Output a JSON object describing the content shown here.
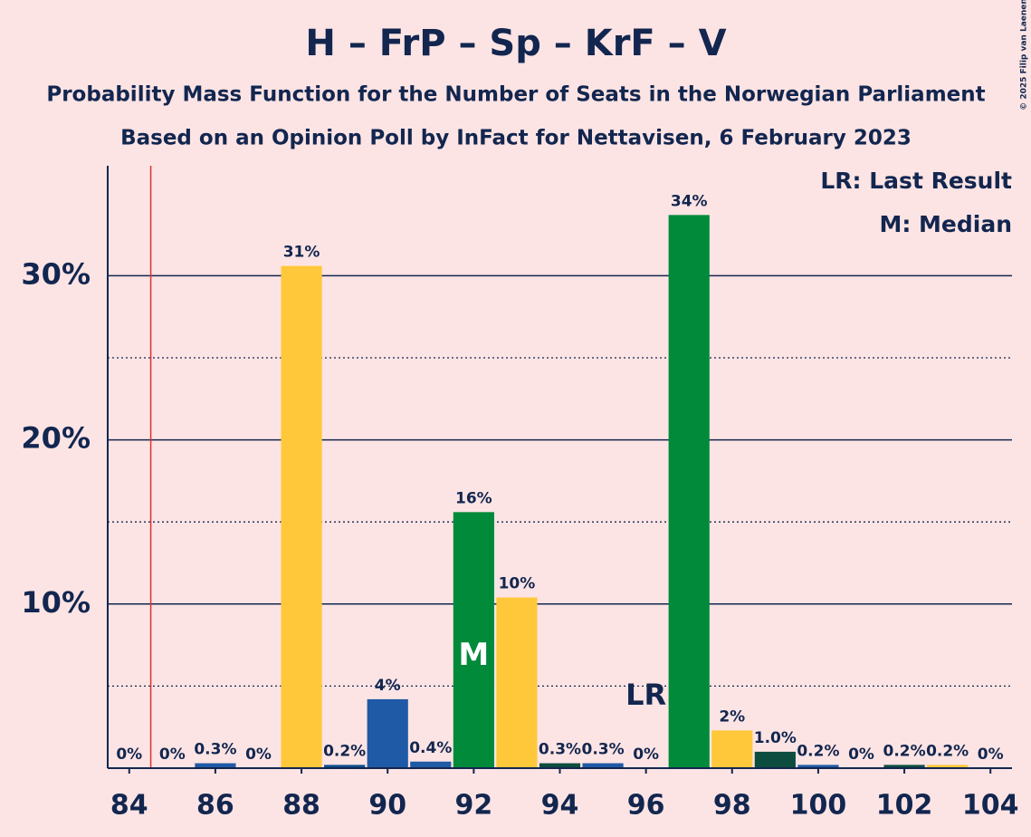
{
  "chart_data": {
    "type": "bar",
    "title": "H – FrP – Sp – KrF – V",
    "subtitles": [
      "Probability Mass Function for the Number of Seats in the Norwegian Parliament",
      "Based on an Opinion Poll by InFact for Nettavisen, 6 February 2023"
    ],
    "x": [
      84,
      85,
      86,
      87,
      88,
      89,
      90,
      91,
      92,
      93,
      94,
      95,
      96,
      97,
      98,
      99,
      100,
      101,
      102,
      103,
      104
    ],
    "values": [
      0,
      0,
      0.3,
      0,
      30.6,
      0.2,
      4.2,
      0.4,
      15.6,
      10.4,
      0.3,
      0.3,
      0,
      33.7,
      2.3,
      1.0,
      0.2,
      0,
      0.2,
      0.2,
      0
    ],
    "value_labels": [
      "0%",
      "0%",
      "0.3%",
      "0%",
      "31%",
      "0.2%",
      "4%",
      "0.4%",
      "16%",
      "10%",
      "0.3%",
      "0.3%",
      "0%",
      "34%",
      "2%",
      "1.0%",
      "0.2%",
      "0%",
      "0.2%",
      "0.2%",
      "0%"
    ],
    "colors": [
      "#1f5aa6",
      "#1f5aa6",
      "#1f5aa6",
      "#1f5aa6",
      "#ffc83a",
      "#0e4d8c",
      "#1f5aa6",
      "#1f5aa6",
      "#008a3a",
      "#ffc83a",
      "#0d4d40",
      "#1f5aa6",
      "#1f5aa6",
      "#008a3a",
      "#ffc83a",
      "#0d4d40",
      "#1f5aa6",
      "#1f5aa6",
      "#0d4d40",
      "#ffc83a",
      "#1f5aa6"
    ],
    "xlim": [
      83.5,
      104.5
    ],
    "xticks": [
      84,
      86,
      88,
      90,
      92,
      94,
      96,
      98,
      100,
      102,
      104
    ],
    "ylim": [
      0,
      36.7
    ],
    "yticks": [
      {
        "value": 10,
        "label": "10%"
      },
      {
        "value": 20,
        "label": "20%"
      },
      {
        "value": 30,
        "label": "30%"
      }
    ],
    "minor_yticks": [
      5,
      15,
      25
    ],
    "grid": true,
    "threshold": 84.5,
    "threshold_color": "#e03030",
    "median": {
      "x": 92,
      "label": "M"
    },
    "last_result": {
      "x": 96,
      "label": "LR"
    },
    "legend": [
      "LR: Last Result",
      "M: Median"
    ],
    "legend_position": "top-right",
    "copyright": "© 2025 Filip van Laenen"
  }
}
